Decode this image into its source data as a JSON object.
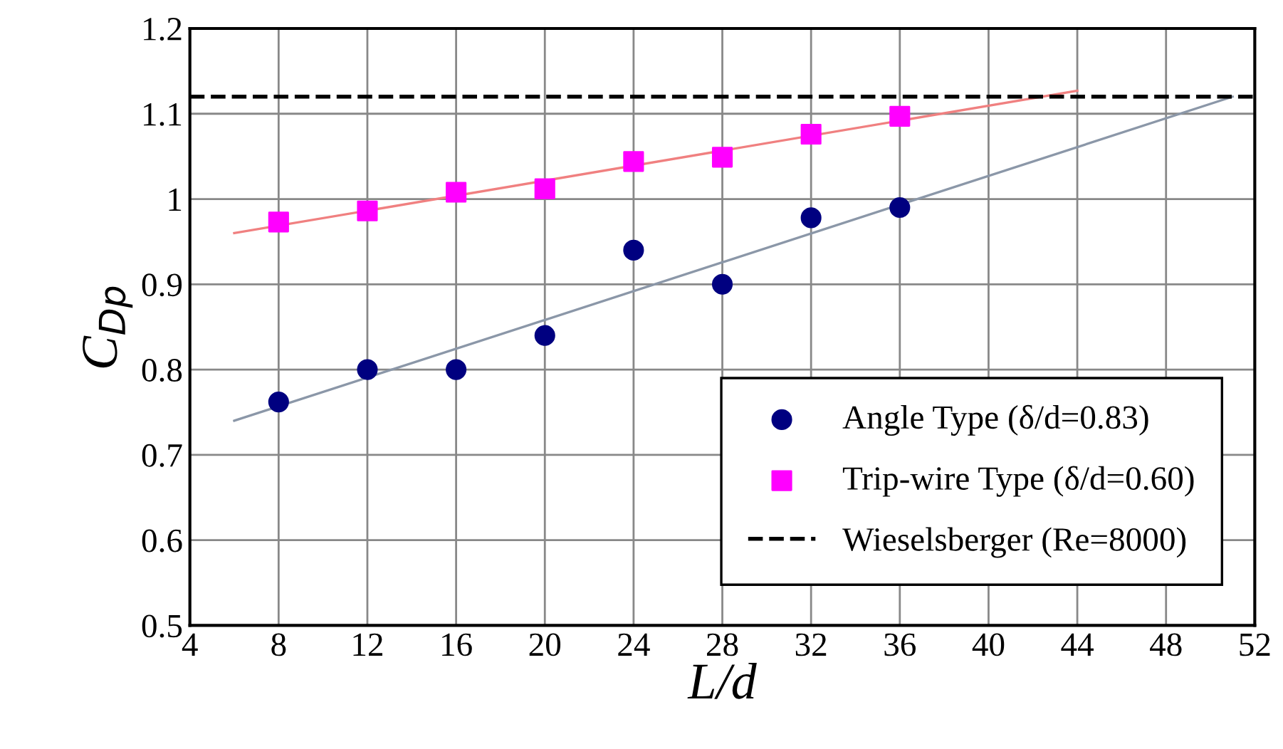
{
  "chart_data": {
    "type": "scatter",
    "xlabel": "L/d",
    "ylabel": "C$_{Dp}$",
    "xlim": [
      4,
      52
    ],
    "xticks": [
      4,
      8,
      12,
      16,
      20,
      24,
      28,
      32,
      36,
      40,
      44,
      48,
      52
    ],
    "ylim": [
      0.5,
      1.2
    ],
    "yticks": [
      0.5,
      0.6,
      0.7,
      0.8,
      0.9,
      1,
      1.1,
      1.2
    ],
    "grid": true,
    "legend": "bottom right",
    "series": [
      {
        "type": "line",
        "color": "#8b97a8",
        "x": [
          6,
          51
        ],
        "values": [
          0.74,
          1.12
        ],
        "marker": "none"
      },
      {
        "type": "line",
        "color": "#f08080",
        "x": [
          6,
          44
        ],
        "values": [
          0.96,
          1.127
        ],
        "marker": "none"
      },
      {
        "name": "Angle Type (δ/d=0.83)",
        "color": "#000080",
        "marker": "circle",
        "x": [
          8,
          12,
          16,
          20,
          24,
          28,
          32,
          36
        ],
        "values": [
          0.762,
          0.8,
          0.8,
          0.84,
          0.94,
          0.9,
          0.978,
          0.99
        ]
      },
      {
        "name": "Trip-wire Type (δ/d=0.60)",
        "color": "#ff00ff",
        "marker": "square",
        "x": [
          8,
          12,
          16,
          20,
          24,
          28,
          32,
          36
        ],
        "values": [
          0.973,
          0.986,
          1.008,
          1.012,
          1.044,
          1.049,
          1.076,
          1.097
        ]
      },
      {
        "type": "line",
        "name": "Wieselsberger (Re=8000)",
        "color": "#000000",
        "line_style": "dashed",
        "marker": "none",
        "x": [
          4,
          52
        ],
        "values": [
          1.12,
          1.12
        ]
      }
    ]
  }
}
